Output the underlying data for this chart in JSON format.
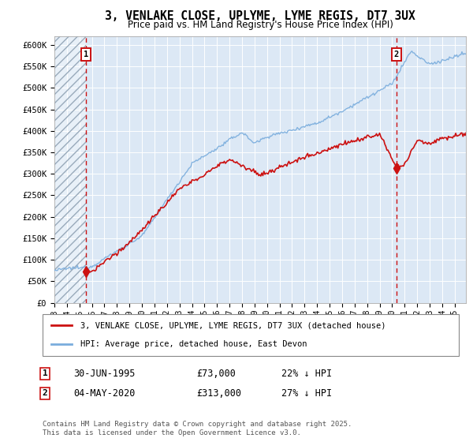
{
  "title": "3, VENLAKE CLOSE, UPLYME, LYME REGIS, DT7 3UX",
  "subtitle": "Price paid vs. HM Land Registry's House Price Index (HPI)",
  "ylim": [
    0,
    620000
  ],
  "yticks": [
    0,
    50000,
    100000,
    150000,
    200000,
    250000,
    300000,
    350000,
    400000,
    450000,
    500000,
    550000,
    600000
  ],
  "ytick_labels": [
    "£0",
    "£50K",
    "£100K",
    "£150K",
    "£200K",
    "£250K",
    "£300K",
    "£350K",
    "£400K",
    "£450K",
    "£500K",
    "£550K",
    "£600K"
  ],
  "hpi_color": "#7aaddd",
  "property_color": "#cc1111",
  "sale1_x": 1995.5,
  "sale1_y": 73000,
  "sale1_date": "30-JUN-1995",
  "sale1_price": "£73,000",
  "sale1_hpi": "22% ↓ HPI",
  "sale2_x": 2020.34,
  "sale2_y": 313000,
  "sale2_date": "04-MAY-2020",
  "sale2_price": "£313,000",
  "sale2_hpi": "27% ↓ HPI",
  "legend_property": "3, VENLAKE CLOSE, UPLYME, LYME REGIS, DT7 3UX (detached house)",
  "legend_hpi": "HPI: Average price, detached house, East Devon",
  "footnote": "Contains HM Land Registry data © Crown copyright and database right 2025.\nThis data is licensed under the Open Government Licence v3.0.",
  "background_color": "#dce8f5",
  "xlim_start": 1993.0,
  "xlim_end": 2025.9
}
